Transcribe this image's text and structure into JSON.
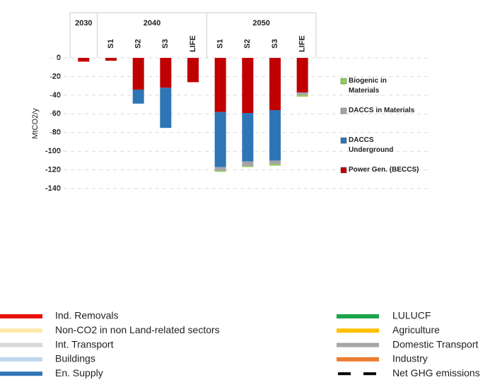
{
  "chart_data": {
    "type": "stacked_bar",
    "y_label": "MtCO2/y",
    "groups": [
      {
        "label": "2030",
        "count": 1
      },
      {
        "label": "2040",
        "count": 4
      },
      {
        "label": "2050",
        "count": 4
      }
    ],
    "categories": [
      null,
      "S1",
      "S2",
      "S3",
      "LIFE",
      "S1",
      "S2",
      "S3",
      "LIFE"
    ],
    "series": [
      {
        "name": "Power Gen. (BECCS)",
        "color": "#c00000",
        "values": [
          -4,
          -3,
          -34,
          -32,
          -26,
          -58,
          -59,
          -56,
          -37
        ]
      },
      {
        "name": "DACCS Underground",
        "color": "#2e75b6",
        "values": [
          0,
          0,
          -15,
          -43,
          0,
          -59,
          -52,
          -54,
          0
        ]
      },
      {
        "name": "DACCS in Materials",
        "color": "#a5a5a5",
        "values": [
          0,
          0,
          0,
          0,
          0,
          -4,
          -5,
          -4,
          -3
        ]
      },
      {
        "name": "Biogenic in Materials",
        "color": "#92d050",
        "values": [
          0,
          0,
          0,
          0,
          0,
          -1,
          -1,
          -1.5,
          -1.5
        ]
      }
    ],
    "ylim": [
      -145,
      0
    ],
    "yticks": [
      0,
      -20,
      -40,
      -60,
      -80,
      -100,
      -120,
      -140
    ],
    "grid": true
  },
  "bottom_legend": {
    "left": [
      {
        "name": "Ind. Removals",
        "color": "#e8120c"
      },
      {
        "name": "Non-CO2 in non Land-related sectors",
        "color": "#fde9a8"
      },
      {
        "name": "Int. Transport",
        "color": "#d9d9d9"
      },
      {
        "name": "Buildings",
        "color": "#bdd7ee"
      },
      {
        "name": "En. Supply",
        "color": "#2e75b6"
      }
    ],
    "right": [
      {
        "name": "LULUCF",
        "color": "#1aa64a"
      },
      {
        "name": "Agriculture",
        "color": "#ffc000"
      },
      {
        "name": "Domestic Transport",
        "color": "#a5a5a5"
      },
      {
        "name": "Industry",
        "color": "#ed7d31"
      },
      {
        "name": "Net GHG emissions",
        "color": "#000000",
        "style": "dashed"
      }
    ]
  }
}
